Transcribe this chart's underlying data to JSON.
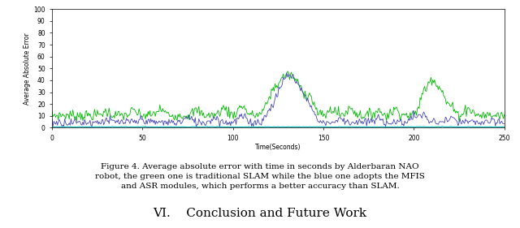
{
  "xlabel": "Time(Seconds)",
  "ylabel": "Average Absolute Error",
  "xlim": [
    0,
    250
  ],
  "ylim": [
    0,
    100
  ],
  "yticks": [
    0,
    10,
    20,
    30,
    40,
    50,
    60,
    70,
    80,
    90,
    100
  ],
  "xticks": [
    0,
    50,
    100,
    150,
    200,
    250
  ],
  "green_color": "#00bb00",
  "blue_color": "#4444bb",
  "cyan_color": "#00bbbb",
  "bg_color": "#ffffff",
  "caption_line1": "Figure 4. Average absolute error with time in seconds by Alderbaran NAO",
  "caption_line2": "robot, the green one is traditional SLAM while the blue one adopts the MFIS",
  "caption_line3": "and ASR modules, which performs a better accuracy than SLAM.",
  "section_title": "VI.    Conclusion and Future Work",
  "seed": 7
}
